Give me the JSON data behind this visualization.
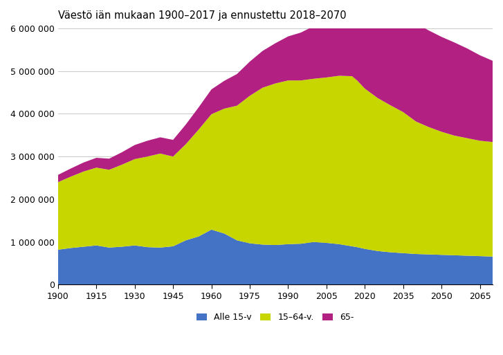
{
  "title": "Väestö iän mukaan 1900–2017 ja ennustettu 2018–2070",
  "years": [
    1900,
    1905,
    1910,
    1915,
    1920,
    1925,
    1930,
    1935,
    1940,
    1945,
    1950,
    1955,
    1960,
    1965,
    1970,
    1975,
    1980,
    1985,
    1990,
    1995,
    2000,
    2005,
    2010,
    2015,
    2017,
    2020,
    2025,
    2030,
    2035,
    2040,
    2045,
    2050,
    2055,
    2060,
    2065,
    2070
  ],
  "alle15": [
    820000,
    860000,
    890000,
    920000,
    870000,
    890000,
    920000,
    880000,
    870000,
    900000,
    1040000,
    1130000,
    1290000,
    1200000,
    1040000,
    970000,
    940000,
    930000,
    950000,
    960000,
    1000000,
    980000,
    950000,
    900000,
    880000,
    840000,
    790000,
    760000,
    740000,
    720000,
    710000,
    700000,
    690000,
    680000,
    670000,
    660000
  ],
  "age15_64": [
    1580000,
    1670000,
    1760000,
    1820000,
    1820000,
    1920000,
    2020000,
    2120000,
    2200000,
    2100000,
    2250000,
    2500000,
    2700000,
    2920000,
    3150000,
    3450000,
    3670000,
    3780000,
    3830000,
    3820000,
    3820000,
    3870000,
    3940000,
    3980000,
    3900000,
    3750000,
    3580000,
    3440000,
    3300000,
    3100000,
    2980000,
    2880000,
    2800000,
    2750000,
    2700000,
    2680000
  ],
  "age65plus": [
    170000,
    190000,
    210000,
    230000,
    260000,
    290000,
    330000,
    370000,
    380000,
    390000,
    460000,
    520000,
    580000,
    650000,
    740000,
    800000,
    860000,
    940000,
    1030000,
    1120000,
    1230000,
    1340000,
    1480000,
    1700000,
    1820000,
    1950000,
    2100000,
    2230000,
    2300000,
    2300000,
    2260000,
    2220000,
    2180000,
    2100000,
    2000000,
    1900000
  ],
  "color_alle15": "#4472c4",
  "color_15_64": "#c8d600",
  "color_65plus": "#b22082",
  "legend_labels": [
    "Alle 15-v",
    "15–64-v.",
    "65-"
  ],
  "xlabel": "",
  "ylabel": "",
  "ylim": [
    0,
    6000000
  ],
  "yticks": [
    0,
    1000000,
    2000000,
    3000000,
    4000000,
    5000000,
    6000000
  ],
  "xticks": [
    1900,
    1915,
    1930,
    1945,
    1960,
    1975,
    1990,
    2005,
    2020,
    2035,
    2050,
    2065
  ],
  "background_color": "#ffffff",
  "grid_color": "#cccccc"
}
